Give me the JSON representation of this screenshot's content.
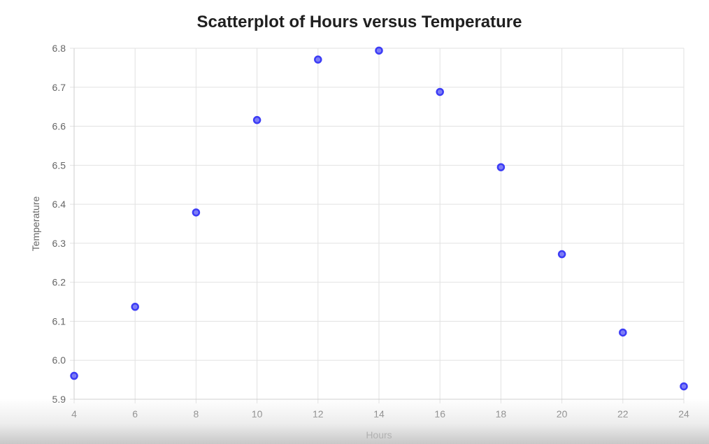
{
  "chart_data": {
    "type": "scatter",
    "title": "Scatterplot of Hours versus Temperature",
    "xlabel": "Hours",
    "ylabel": "Temperature",
    "xlim": [
      4,
      24
    ],
    "ylim": [
      5.9,
      6.8
    ],
    "x_ticks": [
      4,
      6,
      8,
      10,
      12,
      14,
      16,
      18,
      20,
      22,
      24
    ],
    "y_ticks": [
      "5.9",
      "6.0",
      "6.1",
      "6.2",
      "6.3",
      "6.4",
      "6.5",
      "6.6",
      "6.7",
      "6.8"
    ],
    "grid": true,
    "legend": "none",
    "point_color": "#3c3cf5",
    "series": [
      {
        "x": [
          4,
          6,
          8,
          10,
          12,
          14,
          16,
          18,
          20,
          22,
          24
        ],
        "y": [
          5.96,
          6.137,
          6.379,
          6.616,
          6.771,
          6.794,
          6.688,
          6.495,
          6.272,
          6.071,
          5.933
        ]
      }
    ]
  }
}
